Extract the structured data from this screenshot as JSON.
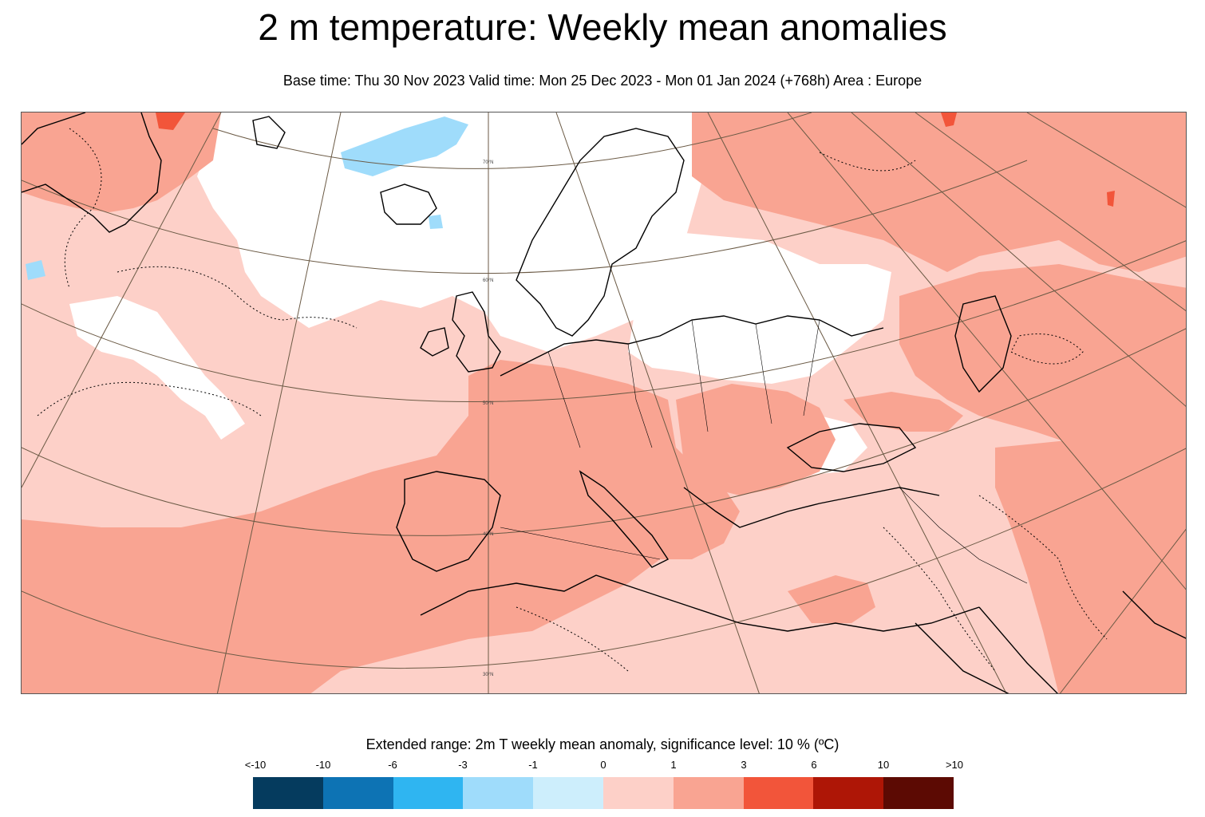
{
  "header": {
    "title": "2 m temperature: Weekly mean anomalies",
    "subtitle": "Base time: Thu 30 Nov 2023 Valid time: Mon 25 Dec 2023 - Mon 01 Jan 2024 (+768h) Area : Europe"
  },
  "map": {
    "area": "Europe",
    "lat_labels": [
      "70°N",
      "60°N",
      "50°N",
      "40°N",
      "30°N"
    ],
    "colors": {
      "background_neutral": "#ffffff",
      "anomaly_0_1": "#fdd0c8",
      "anomaly_1_3": "#f9a492",
      "anomaly_3_6": "#f2553a",
      "anomaly_neg1_neg3": "#9fdcfb",
      "coastline": "#000000",
      "graticule": "#6b5a45"
    }
  },
  "legend": {
    "title": "Extended range: 2m T weekly mean anomaly, significance level: 10 % (ºC)",
    "ticks": [
      "<-10",
      "-10",
      "-6",
      "-3",
      "-1",
      "0",
      "1",
      "3",
      "6",
      "10",
      ">10"
    ],
    "colors": [
      "#053b5e",
      "#0d73b4",
      "#2fb5f1",
      "#9fdcfb",
      "#cdeefc",
      "#fdd0c8",
      "#f9a492",
      "#f2553a",
      "#ae1606",
      "#5c0a03"
    ]
  }
}
